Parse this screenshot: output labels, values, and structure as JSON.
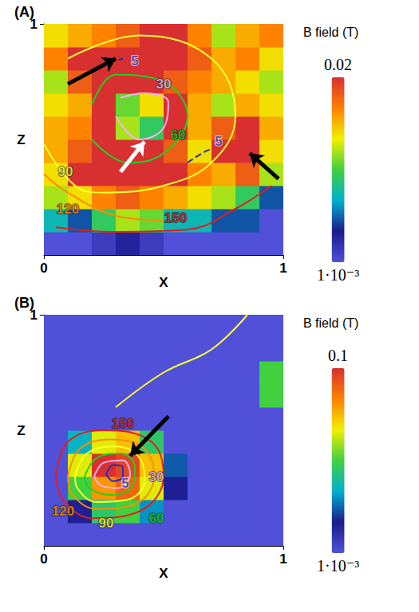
{
  "chart_data": [
    {
      "type": "heatmap",
      "title": "(A)",
      "x_label": "X",
      "y_label": "Z",
      "xlim": [
        0,
        1
      ],
      "ylim": [
        0,
        1
      ],
      "xticks": [
        0,
        1
      ],
      "yticks": [
        1
      ],
      "cells": [
        [
          0.001,
          0.001,
          0.0012,
          0.0015,
          0.0012,
          0.001,
          0.001,
          0.001,
          0.001,
          0.001
        ],
        [
          0.003,
          0.002,
          0.004,
          0.006,
          0.005,
          0.003,
          0.003,
          0.002,
          0.002,
          0.001
        ],
        [
          0.006,
          0.008,
          0.012,
          0.015,
          0.012,
          0.01,
          0.008,
          0.006,
          0.004,
          0.002
        ],
        [
          0.008,
          0.02,
          0.02,
          0.02,
          0.02,
          0.02,
          0.012,
          0.01,
          0.015,
          0.006
        ],
        [
          0.01,
          0.015,
          0.02,
          0.02,
          0.02,
          0.015,
          0.008,
          0.02,
          0.02,
          0.008
        ],
        [
          0.01,
          0.012,
          0.02,
          0.006,
          0.004,
          0.02,
          0.01,
          0.015,
          0.02,
          0.01
        ],
        [
          0.008,
          0.01,
          0.02,
          0.005,
          0.008,
          0.02,
          0.01,
          0.006,
          0.01,
          0.008
        ],
        [
          0.006,
          0.015,
          0.02,
          0.02,
          0.02,
          0.015,
          0.012,
          0.01,
          0.008,
          0.006
        ],
        [
          0.012,
          0.02,
          0.02,
          0.02,
          0.02,
          0.02,
          0.015,
          0.01,
          0.012,
          0.008
        ],
        [
          0.008,
          0.01,
          0.012,
          0.015,
          0.02,
          0.02,
          0.012,
          0.006,
          0.01,
          0.012
        ]
      ],
      "colorbar": {
        "label": "B field (T)",
        "lim": [
          0.001,
          0.02
        ],
        "log": true,
        "ticks": [
          {
            "value": 0.001,
            "label": "1·10⁻³"
          },
          {
            "value": 0.02,
            "label": "0.02"
          }
        ]
      },
      "contours": [
        {
          "level": 150,
          "color": "#e02020",
          "line_style": "solid",
          "label_at": [
            0.55,
            0.16
          ],
          "paths": [
            [
              [
                0.05,
                0.12
              ],
              [
                0.3,
                0.1
              ],
              [
                0.6,
                0.11
              ],
              [
                0.8,
                0.2
              ],
              [
                0.95,
                0.3
              ]
            ]
          ]
        },
        {
          "level": 120,
          "color": "#ff8c00",
          "line_style": "solid",
          "label_at": [
            0.1,
            0.2
          ],
          "paths": [
            [
              [
                0.0,
                0.35
              ],
              [
                0.1,
                0.27
              ],
              [
                0.3,
                0.17
              ],
              [
                0.5,
                0.15
              ]
            ]
          ]
        },
        {
          "level": 90,
          "color": "#ffff30",
          "line_style": "solid",
          "label_at": [
            0.09,
            0.36
          ],
          "paths": [
            [
              [
                0.0,
                0.48
              ],
              [
                0.13,
                0.3
              ],
              [
                0.25,
                0.27
              ],
              [
                0.5,
                0.3
              ],
              [
                0.7,
                0.4
              ],
              [
                0.8,
                0.6
              ],
              [
                0.7,
                0.85
              ],
              [
                0.4,
                0.95
              ],
              [
                0.1,
                0.85
              ]
            ]
          ]
        },
        {
          "level": 60,
          "color": "#20d020",
          "line_style": "solid",
          "label_at": [
            0.56,
            0.52
          ],
          "paths": [
            [
              [
                0.2,
                0.5
              ],
              [
                0.35,
                0.4
              ],
              [
                0.5,
                0.44
              ],
              [
                0.6,
                0.6
              ],
              [
                0.5,
                0.75
              ],
              [
                0.3,
                0.78
              ],
              [
                0.2,
                0.65
              ]
            ]
          ]
        },
        {
          "level": 30,
          "color": "#f4b0f0",
          "line_style": "solid",
          "label_at": [
            0.5,
            0.74
          ],
          "paths": [
            [
              [
                0.3,
                0.6
              ],
              [
                0.4,
                0.5
              ],
              [
                0.5,
                0.55
              ],
              [
                0.52,
                0.66
              ],
              [
                0.42,
                0.7
              ],
              [
                0.32,
                0.68
              ]
            ]
          ]
        },
        {
          "level": 5,
          "color": "#2030c0",
          "line_style": "dashed",
          "label_at": [
            0.38,
            0.84
          ],
          "paths": [
            [
              [
                0.2,
                0.8
              ],
              [
                0.27,
                0.83
              ],
              [
                0.33,
                0.85
              ]
            ],
            [
              [
                0.6,
                0.4
              ],
              [
                0.66,
                0.44
              ],
              [
                0.7,
                0.46
              ]
            ]
          ]
        },
        {
          "level": 5,
          "color": "#2030c0",
          "line_style": "dashed",
          "label_at": [
            0.73,
            0.49
          ],
          "paths": []
        }
      ],
      "arrows": [
        {
          "from": [
            0.1,
            0.74
          ],
          "to": [
            0.3,
            0.85
          ],
          "color": "#000000"
        },
        {
          "from": [
            0.32,
            0.36
          ],
          "to": [
            0.42,
            0.49
          ],
          "color": "#ffffff"
        },
        {
          "from": [
            0.98,
            0.33
          ],
          "to": [
            0.86,
            0.44
          ],
          "color": "#000000"
        }
      ]
    },
    {
      "type": "heatmap",
      "title": "(B)",
      "x_label": "X",
      "y_label": "Z",
      "xlim": [
        0,
        1
      ],
      "ylim": [
        0,
        1
      ],
      "xticks": [
        0,
        1
      ],
      "yticks": [
        1
      ],
      "cells": [
        [
          0.001,
          0.001,
          0.001,
          0.001,
          0.001,
          0.001,
          0.001,
          0.001,
          0.001,
          0.001
        ],
        [
          0.001,
          0.002,
          0.008,
          0.01,
          0.004,
          0.001,
          0.001,
          0.001,
          0.001,
          0.001
        ],
        [
          0.001,
          0.01,
          0.04,
          0.06,
          0.02,
          0.002,
          0.001,
          0.001,
          0.001,
          0.001
        ],
        [
          0.001,
          0.02,
          0.1,
          0.08,
          0.03,
          0.003,
          0.001,
          0.001,
          0.001,
          0.001
        ],
        [
          0.001,
          0.005,
          0.02,
          0.03,
          0.008,
          0.001,
          0.001,
          0.001,
          0.001,
          0.001
        ],
        [
          0.001,
          0.001,
          0.001,
          0.001,
          0.001,
          0.001,
          0.001,
          0.001,
          0.001,
          0.001
        ],
        [
          0.001,
          0.001,
          0.001,
          0.001,
          0.001,
          0.001,
          0.001,
          0.001,
          0.001,
          0.01
        ],
        [
          0.001,
          0.001,
          0.001,
          0.001,
          0.001,
          0.001,
          0.001,
          0.001,
          0.001,
          0.01
        ],
        [
          0.001,
          0.001,
          0.001,
          0.001,
          0.001,
          0.001,
          0.001,
          0.001,
          0.001,
          0.001
        ],
        [
          0.001,
          0.001,
          0.001,
          0.001,
          0.001,
          0.001,
          0.001,
          0.001,
          0.001,
          0.001
        ]
      ],
      "colorbar": {
        "label": "B field (T)",
        "lim": [
          0.001,
          0.1
        ],
        "log": true,
        "ticks": [
          {
            "value": 0.001,
            "label": "1·10⁻³"
          },
          {
            "value": 0.1,
            "label": "0.1"
          }
        ]
      },
      "contours": [
        {
          "level": 150,
          "color": "#e02020",
          "line_style": "solid",
          "label_at": [
            0.33,
            0.53
          ],
          "paths": [
            [
              [
                0.05,
                0.3
              ],
              [
                0.1,
                0.45
              ],
              [
                0.25,
                0.5
              ],
              [
                0.45,
                0.45
              ],
              [
                0.5,
                0.3
              ],
              [
                0.4,
                0.15
              ],
              [
                0.2,
                0.12
              ],
              [
                0.08,
                0.2
              ],
              [
                0.05,
                0.3
              ]
            ]
          ]
        },
        {
          "level": 120,
          "color": "#ff8c00",
          "line_style": "solid",
          "label_at": [
            0.08,
            0.15
          ],
          "paths": [
            [
              [
                0.1,
                0.3
              ],
              [
                0.15,
                0.42
              ],
              [
                0.28,
                0.46
              ],
              [
                0.42,
                0.42
              ],
              [
                0.46,
                0.3
              ],
              [
                0.38,
                0.18
              ],
              [
                0.22,
                0.16
              ],
              [
                0.12,
                0.22
              ],
              [
                0.1,
                0.3
              ]
            ]
          ]
        },
        {
          "level": 90,
          "color": "#ffff30",
          "line_style": "solid",
          "label_at": [
            0.26,
            0.1
          ],
          "paths": [
            [
              [
                0.13,
                0.3
              ],
              [
                0.18,
                0.4
              ],
              [
                0.3,
                0.43
              ],
              [
                0.4,
                0.38
              ],
              [
                0.42,
                0.28
              ],
              [
                0.35,
                0.2
              ],
              [
                0.22,
                0.19
              ],
              [
                0.14,
                0.25
              ],
              [
                0.13,
                0.3
              ]
            ],
            [
              [
                0.3,
                0.6
              ],
              [
                0.5,
                0.75
              ],
              [
                0.7,
                0.85
              ],
              [
                0.85,
                1.0
              ]
            ]
          ]
        },
        {
          "level": 60,
          "color": "#20d020",
          "line_style": "solid",
          "label_at": [
            0.47,
            0.12
          ],
          "paths": [
            [
              [
                0.17,
                0.3
              ],
              [
                0.22,
                0.38
              ],
              [
                0.32,
                0.4
              ],
              [
                0.38,
                0.34
              ],
              [
                0.37,
                0.26
              ],
              [
                0.28,
                0.22
              ],
              [
                0.19,
                0.25
              ],
              [
                0.17,
                0.3
              ]
            ]
          ]
        },
        {
          "level": 30,
          "color": "#f4b0f0",
          "line_style": "solid",
          "label_at": [
            0.47,
            0.3
          ],
          "paths": [
            [
              [
                0.21,
                0.3
              ],
              [
                0.25,
                0.36
              ],
              [
                0.33,
                0.37
              ],
              [
                0.36,
                0.31
              ],
              [
                0.31,
                0.25
              ],
              [
                0.24,
                0.26
              ],
              [
                0.21,
                0.3
              ]
            ]
          ]
        },
        {
          "level": 5,
          "color": "#2030c0",
          "line_style": "solid",
          "label_at": [
            0.34,
            0.27
          ],
          "paths": [
            [
              [
                0.26,
                0.31
              ],
              [
                0.29,
                0.35
              ],
              [
                0.33,
                0.34
              ],
              [
                0.33,
                0.3
              ],
              [
                0.29,
                0.28
              ],
              [
                0.26,
                0.31
              ]
            ]
          ]
        }
      ],
      "arrows": [
        {
          "from": [
            0.52,
            0.56
          ],
          "to": [
            0.36,
            0.39
          ],
          "color": "#000000"
        }
      ]
    }
  ]
}
